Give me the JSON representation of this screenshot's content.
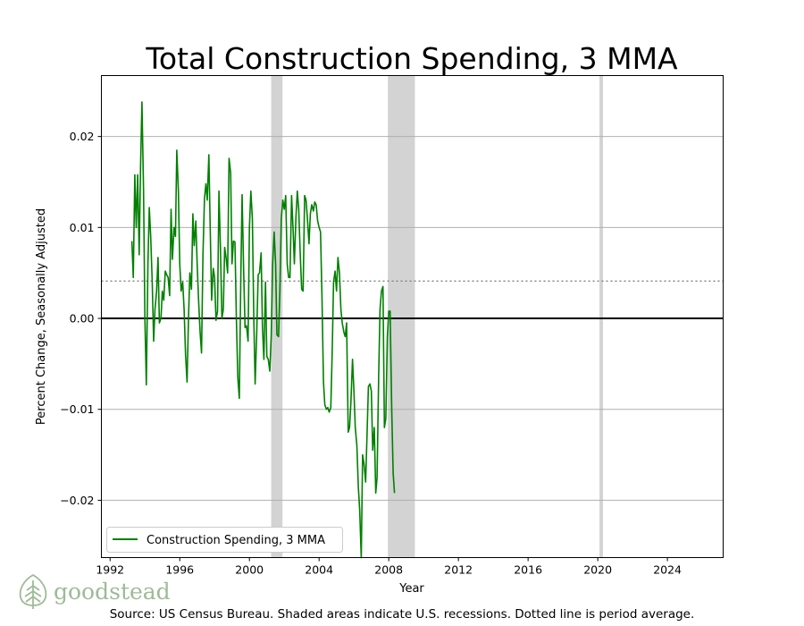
{
  "chart_data": {
    "type": "line",
    "title": "Total Construction Spending, 3 MMA",
    "xlabel": "Year",
    "ylabel": "Percent Change, Seasonally Adjusted",
    "xlim": [
      1991.5,
      2027.2
    ],
    "ylim": [
      -0.0263,
      0.0267
    ],
    "x_ticks": [
      1992,
      1996,
      2000,
      2004,
      2008,
      2012,
      2016,
      2020,
      2024
    ],
    "x_tick_labels": [
      "1992",
      "1996",
      "2000",
      "2004",
      "2008",
      "2012",
      "2016",
      "2020",
      "2024"
    ],
    "y_ticks": [
      -0.02,
      -0.01,
      0.0,
      0.01,
      0.02
    ],
    "y_tick_labels": [
      "−0.02",
      "−0.01",
      "0.00",
      "0.01",
      "0.02"
    ],
    "grid": "horizontal",
    "zero_line": 0.0,
    "period_average": 0.0041,
    "recessions": [
      {
        "start": 2001.25,
        "end": 2001.9
      },
      {
        "start": 2007.95,
        "end": 2009.5
      },
      {
        "start": 2020.1,
        "end": 2020.3
      }
    ],
    "legend_position": "lower-left",
    "series": [
      {
        "name": "Construction Spending, 3 MMA",
        "color": "#008000",
        "points": [
          [
            1993.25,
            0.0085
          ],
          [
            1993.33,
            0.0045
          ],
          [
            1993.42,
            0.0158
          ],
          [
            1993.5,
            0.01
          ],
          [
            1993.58,
            0.0158
          ],
          [
            1993.67,
            0.007
          ],
          [
            1993.75,
            0.017
          ],
          [
            1993.83,
            0.0238
          ],
          [
            1993.92,
            0.014
          ],
          [
            1994.0,
            0.0
          ],
          [
            1994.08,
            -0.0073
          ],
          [
            1994.17,
            0.006
          ],
          [
            1994.25,
            0.0122
          ],
          [
            1994.33,
            0.009
          ],
          [
            1994.42,
            0.004
          ],
          [
            1994.5,
            -0.0025
          ],
          [
            1994.58,
            0.001
          ],
          [
            1994.67,
            0.003
          ],
          [
            1994.75,
            0.0067
          ],
          [
            1994.83,
            -0.0005
          ],
          [
            1994.92,
            0.0
          ],
          [
            1995.0,
            0.003
          ],
          [
            1995.08,
            0.002
          ],
          [
            1995.17,
            0.0052
          ],
          [
            1995.25,
            0.0048
          ],
          [
            1995.33,
            0.0045
          ],
          [
            1995.42,
            0.0025
          ],
          [
            1995.5,
            0.012
          ],
          [
            1995.58,
            0.0065
          ],
          [
            1995.67,
            0.01
          ],
          [
            1995.75,
            0.009
          ],
          [
            1995.83,
            0.0185
          ],
          [
            1995.92,
            0.014
          ],
          [
            1996.0,
            0.006
          ],
          [
            1996.08,
            0.003
          ],
          [
            1996.17,
            0.004
          ],
          [
            1996.25,
            0.001
          ],
          [
            1996.33,
            -0.004
          ],
          [
            1996.42,
            -0.007
          ],
          [
            1996.5,
            0.0
          ],
          [
            1996.58,
            0.005
          ],
          [
            1996.67,
            0.0032
          ],
          [
            1996.75,
            0.0115
          ],
          [
            1996.83,
            0.008
          ],
          [
            1996.92,
            0.0107
          ],
          [
            1997.0,
            0.006
          ],
          [
            1997.08,
            0.002
          ],
          [
            1997.17,
            -0.0015
          ],
          [
            1997.25,
            -0.0038
          ],
          [
            1997.33,
            0.007
          ],
          [
            1997.42,
            0.0132
          ],
          [
            1997.5,
            0.0148
          ],
          [
            1997.58,
            0.013
          ],
          [
            1997.67,
            0.018
          ],
          [
            1997.75,
            0.01
          ],
          [
            1997.83,
            0.002
          ],
          [
            1997.92,
            0.0055
          ],
          [
            1998.0,
            0.0045
          ],
          [
            1998.08,
            -0.0002
          ],
          [
            1998.17,
            0.0008
          ],
          [
            1998.25,
            0.014
          ],
          [
            1998.33,
            0.008
          ],
          [
            1998.42,
            0.0
          ],
          [
            1998.5,
            0.001
          ],
          [
            1998.58,
            0.0078
          ],
          [
            1998.67,
            0.0065
          ],
          [
            1998.75,
            0.005
          ],
          [
            1998.83,
            0.0176
          ],
          [
            1998.92,
            0.016
          ],
          [
            1999.0,
            0.006
          ],
          [
            1999.08,
            0.0085
          ],
          [
            1999.17,
            0.0084
          ],
          [
            1999.25,
            0.0
          ],
          [
            1999.33,
            -0.0065
          ],
          [
            1999.42,
            -0.0088
          ],
          [
            1999.5,
            0.004
          ],
          [
            1999.58,
            0.0136
          ],
          [
            1999.67,
            0.005
          ],
          [
            1999.75,
            -0.001
          ],
          [
            1999.83,
            -0.0008
          ],
          [
            1999.92,
            -0.0025
          ],
          [
            2000.0,
            0.01
          ],
          [
            2000.08,
            0.014
          ],
          [
            2000.17,
            0.011
          ],
          [
            2000.25,
            0.0
          ],
          [
            2000.33,
            -0.0072
          ],
          [
            2000.42,
            -0.0015
          ],
          [
            2000.5,
            0.0048
          ],
          [
            2000.58,
            0.005
          ],
          [
            2000.67,
            0.0072
          ],
          [
            2000.75,
            -0.001
          ],
          [
            2000.83,
            -0.0045
          ],
          [
            2000.92,
            0.004
          ],
          [
            2001.0,
            -0.0042
          ],
          [
            2001.08,
            -0.0045
          ],
          [
            2001.17,
            -0.0058
          ],
          [
            2001.25,
            -0.002
          ],
          [
            2001.33,
            0.0058
          ],
          [
            2001.42,
            0.0095
          ],
          [
            2001.5,
            0.006
          ],
          [
            2001.58,
            -0.0018
          ],
          [
            2001.67,
            -0.002
          ],
          [
            2001.75,
            0.003
          ],
          [
            2001.83,
            0.011
          ],
          [
            2001.92,
            0.013
          ],
          [
            2002.0,
            0.012
          ],
          [
            2002.08,
            0.0135
          ],
          [
            2002.17,
            0.006
          ],
          [
            2002.25,
            0.0045
          ],
          [
            2002.33,
            0.0045
          ],
          [
            2002.42,
            0.0135
          ],
          [
            2002.5,
            0.01
          ],
          [
            2002.58,
            0.006
          ],
          [
            2002.67,
            0.0112
          ],
          [
            2002.75,
            0.014
          ],
          [
            2002.83,
            0.012
          ],
          [
            2002.92,
            0.007
          ],
          [
            2003.0,
            0.0032
          ],
          [
            2003.08,
            0.003
          ],
          [
            2003.17,
            0.0135
          ],
          [
            2003.25,
            0.013
          ],
          [
            2003.33,
            0.011
          ],
          [
            2003.42,
            0.0082
          ],
          [
            2003.5,
            0.0115
          ],
          [
            2003.58,
            0.0125
          ],
          [
            2003.67,
            0.0118
          ],
          [
            2003.75,
            0.0128
          ],
          [
            2003.83,
            0.0125
          ],
          [
            2003.92,
            0.0107
          ],
          [
            2004.0,
            0.01
          ],
          [
            2004.08,
            0.0095
          ],
          [
            2004.17,
            0.002
          ],
          [
            2004.25,
            -0.007
          ],
          [
            2004.33,
            -0.0095
          ],
          [
            2004.42,
            -0.01
          ],
          [
            2004.5,
            -0.0098
          ],
          [
            2004.58,
            -0.0103
          ],
          [
            2004.67,
            -0.0098
          ],
          [
            2004.75,
            -0.004
          ],
          [
            2004.83,
            0.004
          ],
          [
            2004.92,
            0.0052
          ],
          [
            2005.0,
            0.003
          ],
          [
            2005.08,
            0.0067
          ],
          [
            2005.17,
            0.005
          ],
          [
            2005.25,
            0.001
          ],
          [
            2005.33,
            -0.0005
          ],
          [
            2005.42,
            -0.0015
          ],
          [
            2005.5,
            -0.002
          ],
          [
            2005.58,
            -0.0005
          ],
          [
            2005.67,
            -0.0125
          ],
          [
            2005.75,
            -0.012
          ],
          [
            2005.83,
            -0.009
          ],
          [
            2005.92,
            -0.0045
          ],
          [
            2006.0,
            -0.008
          ],
          [
            2006.08,
            -0.012
          ],
          [
            2006.17,
            -0.014
          ],
          [
            2006.25,
            -0.0185
          ],
          [
            2006.33,
            -0.021
          ],
          [
            2006.42,
            -0.0263
          ],
          [
            2006.5,
            -0.015
          ],
          [
            2006.58,
            -0.016
          ],
          [
            2006.67,
            -0.018
          ],
          [
            2006.75,
            -0.013
          ],
          [
            2006.83,
            -0.0075
          ],
          [
            2006.92,
            -0.0072
          ],
          [
            2007.0,
            -0.008
          ],
          [
            2007.08,
            -0.0145
          ],
          [
            2007.17,
            -0.012
          ],
          [
            2007.25,
            -0.0192
          ],
          [
            2007.33,
            -0.0175
          ],
          [
            2007.42,
            -0.0062
          ],
          [
            2007.5,
            0.001
          ],
          [
            2007.58,
            0.003
          ],
          [
            2007.67,
            0.0035
          ],
          [
            2007.75,
            -0.012
          ],
          [
            2007.83,
            -0.011
          ],
          [
            2007.92,
            -0.002
          ],
          [
            2008.0,
            0.0008
          ],
          [
            2008.08,
            0.0008
          ],
          [
            2008.17,
            -0.01
          ],
          [
            2008.25,
            -0.017
          ],
          [
            2008.33,
            -0.0192
          ]
        ]
      }
    ]
  },
  "legend": {
    "label": "Construction Spending, 3 MMA"
  },
  "logo": {
    "text": "goodstead"
  },
  "footer": {
    "source_note": "Source: US Census Bureau. Shaded areas indicate U.S. recessions. Dotted line is period average."
  }
}
